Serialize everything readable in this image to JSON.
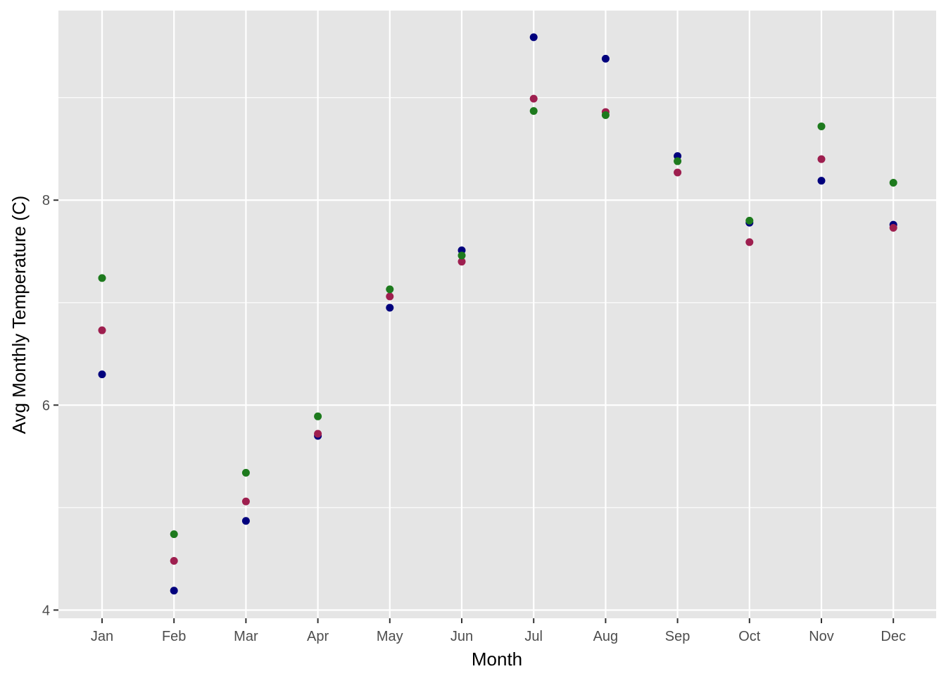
{
  "chart_data": {
    "type": "scatter",
    "xlabel": "Month",
    "ylabel": "Avg Monthly Temperature (C)",
    "categories": [
      "Jan",
      "Feb",
      "Mar",
      "Apr",
      "May",
      "Jun",
      "Jul",
      "Aug",
      "Sep",
      "Oct",
      "Nov",
      "Dec"
    ],
    "ylim": [
      3.92,
      9.85
    ],
    "yticks": [
      4,
      6,
      8
    ],
    "grid": true,
    "legend": "none",
    "colors": {
      "panel_background": "#e5e5e5",
      "grid": "#ffffff"
    },
    "series": [
      {
        "color": "#00007d",
        "values": [
          6.3,
          4.19,
          4.87,
          5.7,
          6.95,
          7.51,
          9.59,
          9.38,
          8.43,
          7.78,
          8.19,
          7.76
        ]
      },
      {
        "color": "#9e1f4f",
        "values": [
          6.73,
          4.48,
          5.06,
          5.72,
          7.06,
          7.4,
          8.99,
          8.86,
          8.27,
          7.59,
          8.4,
          7.73
        ]
      },
      {
        "color": "#1d7a1d",
        "values": [
          7.24,
          4.74,
          5.34,
          5.89,
          7.13,
          7.46,
          8.87,
          8.83,
          8.38,
          7.8,
          8.72,
          8.17
        ]
      }
    ]
  }
}
